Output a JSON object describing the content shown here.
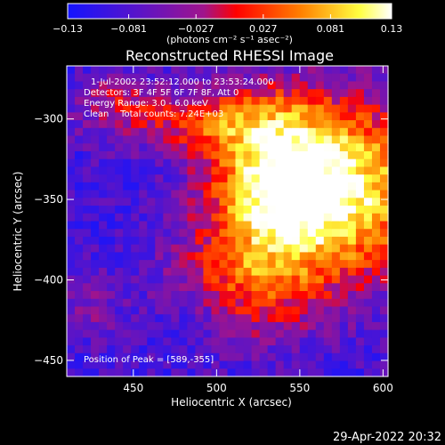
{
  "chart_data": {
    "type": "heatmap",
    "title": "Reconstructed RHESSI Image",
    "xlabel": "Heliocentric X (arcsec)",
    "ylabel": "Heliocentric Y (arcsec)",
    "xlim": [
      410,
      603
    ],
    "ylim": [
      -460,
      -267
    ],
    "x_ticks": [
      450,
      500,
      550,
      600
    ],
    "y_ticks": [
      -300,
      -350,
      -400,
      -450
    ],
    "x_tick_labels": [
      "450",
      "500",
      "550",
      "600"
    ],
    "y_tick_labels": [
      "−300",
      "−350",
      "−400",
      "−450"
    ],
    "colorbar": {
      "range": [
        -0.13,
        0.13
      ],
      "ticks": [
        -0.13,
        -0.081,
        -0.027,
        0.027,
        0.081,
        0.13
      ],
      "tick_labels": [
        "−0.13",
        "−0.081",
        "−0.027",
        "0.027",
        "0.081",
        "0.13"
      ],
      "units_label": "(photons cm⁻² s⁻¹ asec⁻²)",
      "colors": [
        "#1414ff",
        "#5a14c8",
        "#a0148c",
        "#ff0000",
        "#ff8000",
        "#ffff40",
        "#ffffff"
      ]
    },
    "annotations": [
      "1-Jul-2002 23:52:12.000 to 23:53:24.000",
      "Detectors: 3F 4F 5F 6F 7F 8F, Att 0",
      "Energy Range: 3.0 - 6.0 keV",
      "Clean    Total counts: 7.24E+03"
    ],
    "peak_label": "Position of Peak = [589,-355]",
    "peak": [
      589,
      -355
    ],
    "grid": false
  },
  "footer": {
    "timestamp": "29-Apr-2022 20:32"
  }
}
